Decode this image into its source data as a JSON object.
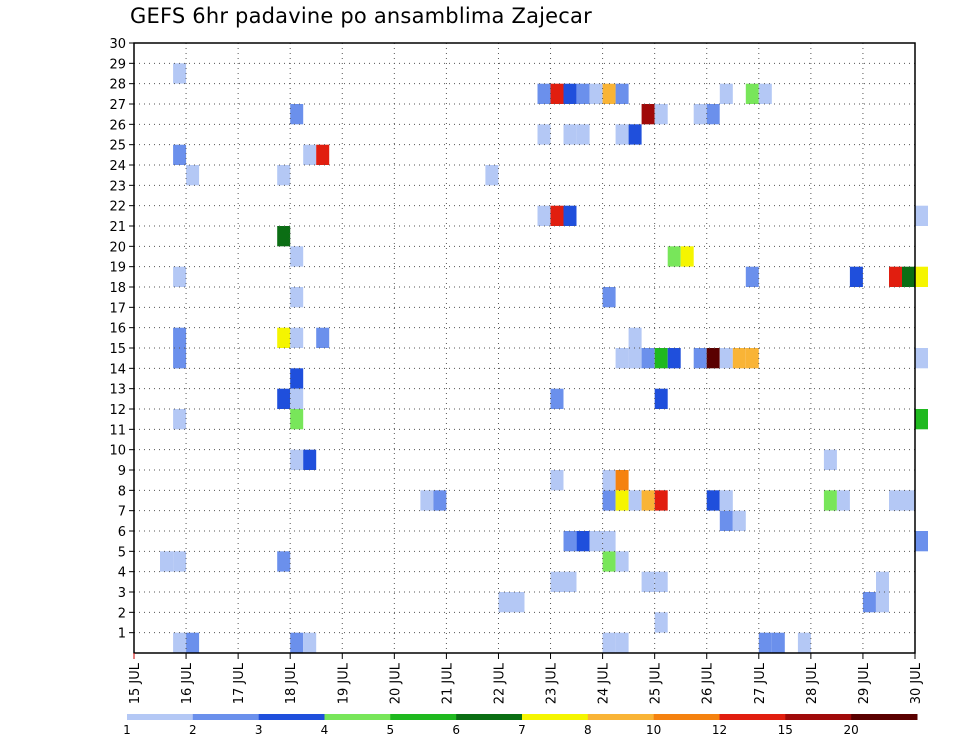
{
  "chart_data": {
    "type": "heatmap",
    "title": "GEFS 6hr padavine po ansamblima Zajecar",
    "x_ticks": [
      "15 JUL",
      "16 JUL",
      "17 JUL",
      "18 JUL",
      "19 JUL",
      "20 JUL",
      "21 JUL",
      "22 JUL",
      "23 JUL",
      "24 JUL",
      "25 JUL",
      "26 JUL",
      "27 JUL",
      "28 JUL",
      "29 JUL",
      "30 JUL"
    ],
    "y_ticks": [
      "1",
      "2",
      "3",
      "4",
      "5",
      "6",
      "7",
      "8",
      "9",
      "10",
      "11",
      "12",
      "13",
      "14",
      "15",
      "16",
      "17",
      "18",
      "19",
      "20",
      "21",
      "22",
      "23",
      "24",
      "25",
      "26",
      "27",
      "28",
      "29",
      "30"
    ],
    "x_range": [
      "15 JUL 00Z",
      "30 JUL 00Z"
    ],
    "time_step_hours": 6,
    "y_range": [
      0,
      30
    ],
    "grid": "dotted",
    "legend": {
      "position": "bottom",
      "labels": [
        "1",
        "2",
        "3",
        "4",
        "5",
        "6",
        "7",
        "8",
        "10",
        "12",
        "15",
        "20"
      ],
      "colors": [
        "#b4c8f5",
        "#6b90ec",
        "#1f4fdc",
        "#78e65a",
        "#1fb91f",
        "#0b6e14",
        "#f5f500",
        "#f9b436",
        "#f5820f",
        "#e11e0f",
        "#a00a0a",
        "#5a0000"
      ]
    },
    "cells": [
      {
        "x": "15 JUL 18Z",
        "y": [
          0,
          1
        ],
        "level": 1
      },
      {
        "x": "16 JUL 00Z",
        "y": [
          0,
          1
        ],
        "level": 2
      },
      {
        "x": "18 JUL 00Z",
        "y": [
          0,
          1
        ],
        "level": 2
      },
      {
        "x": "18 JUL 06Z",
        "y": [
          0,
          1
        ],
        "level": 1
      },
      {
        "x": "24 JUL 00Z",
        "y": [
          0,
          1
        ],
        "level": 1
      },
      {
        "x": "24 JUL 06Z",
        "y": [
          0,
          1
        ],
        "level": 1
      },
      {
        "x": "27 JUL 00Z",
        "y": [
          0,
          1
        ],
        "level": 2
      },
      {
        "x": "27 JUL 06Z",
        "y": [
          0,
          1
        ],
        "level": 2
      },
      {
        "x": "27 JUL 18Z",
        "y": [
          0,
          1
        ],
        "level": 1
      },
      {
        "x": "25 JUL 00Z",
        "y": [
          1,
          2
        ],
        "level": 1
      },
      {
        "x": "22 JUL 00Z",
        "y": [
          2,
          3
        ],
        "level": 1
      },
      {
        "x": "22 JUL 06Z",
        "y": [
          2,
          3
        ],
        "level": 1
      },
      {
        "x": "29 JUL 00Z",
        "y": [
          2,
          3
        ],
        "level": 2
      },
      {
        "x": "29 JUL 06Z",
        "y": [
          2,
          3
        ],
        "level": 1
      },
      {
        "x": "23 JUL 00Z",
        "y": [
          3,
          4
        ],
        "level": 1
      },
      {
        "x": "23 JUL 06Z",
        "y": [
          3,
          4
        ],
        "level": 1
      },
      {
        "x": "24 JUL 18Z",
        "y": [
          3,
          4
        ],
        "level": 1
      },
      {
        "x": "25 JUL 00Z",
        "y": [
          3,
          4
        ],
        "level": 1
      },
      {
        "x": "29 JUL 06Z",
        "y": [
          3,
          4
        ],
        "level": 1
      },
      {
        "x": "15 JUL 12Z",
        "y": [
          4,
          5
        ],
        "level": 1
      },
      {
        "x": "15 JUL 18Z",
        "y": [
          4,
          5
        ],
        "level": 1
      },
      {
        "x": "17 JUL 18Z",
        "y": [
          4,
          5
        ],
        "level": 2
      },
      {
        "x": "24 JUL 00Z",
        "y": [
          4,
          5
        ],
        "level": 4
      },
      {
        "x": "24 JUL 06Z",
        "y": [
          4,
          5
        ],
        "level": 1
      },
      {
        "x": "23 JUL 06Z",
        "y": [
          5,
          6
        ],
        "level": 2
      },
      {
        "x": "23 JUL 12Z",
        "y": [
          5,
          6
        ],
        "level": 3
      },
      {
        "x": "23 JUL 18Z",
        "y": [
          5,
          6
        ],
        "level": 1
      },
      {
        "x": "24 JUL 00Z",
        "y": [
          5,
          6
        ],
        "level": 1
      },
      {
        "x": "30 JUL 00Z",
        "y": [
          5,
          6
        ],
        "level": 2
      },
      {
        "x": "26 JUL 06Z",
        "y": [
          6,
          7
        ],
        "level": 2
      },
      {
        "x": "26 JUL 12Z",
        "y": [
          6,
          7
        ],
        "level": 1
      },
      {
        "x": "20 JUL 12Z",
        "y": [
          7,
          8
        ],
        "level": 1
      },
      {
        "x": "20 JUL 18Z",
        "y": [
          7,
          8
        ],
        "level": 2
      },
      {
        "x": "24 JUL 00Z",
        "y": [
          7,
          8
        ],
        "level": 2
      },
      {
        "x": "24 JUL 06Z",
        "y": [
          7,
          8
        ],
        "level": 7
      },
      {
        "x": "24 JUL 12Z",
        "y": [
          7,
          8
        ],
        "level": 1
      },
      {
        "x": "24 JUL 18Z",
        "y": [
          7,
          8
        ],
        "level": 8
      },
      {
        "x": "25 JUL 00Z",
        "y": [
          7,
          8
        ],
        "level": 12
      },
      {
        "x": "26 JUL 00Z",
        "y": [
          7,
          8
        ],
        "level": 3
      },
      {
        "x": "26 JUL 06Z",
        "y": [
          7,
          8
        ],
        "level": 1
      },
      {
        "x": "28 JUL 06Z",
        "y": [
          7,
          8
        ],
        "level": 4
      },
      {
        "x": "28 JUL 12Z",
        "y": [
          7,
          8
        ],
        "level": 1
      },
      {
        "x": "29 JUL 12Z",
        "y": [
          7,
          8
        ],
        "level": 1
      },
      {
        "x": "29 JUL 18Z",
        "y": [
          7,
          8
        ],
        "level": 1
      },
      {
        "x": "23 JUL 00Z",
        "y": [
          8,
          9
        ],
        "level": 1
      },
      {
        "x": "24 JUL 00Z",
        "y": [
          8,
          9
        ],
        "level": 1
      },
      {
        "x": "24 JUL 06Z",
        "y": [
          8,
          9
        ],
        "level": 10
      },
      {
        "x": "18 JUL 00Z",
        "y": [
          9,
          10
        ],
        "level": 1
      },
      {
        "x": "18 JUL 06Z",
        "y": [
          9,
          10
        ],
        "level": 3
      },
      {
        "x": "28 JUL 06Z",
        "y": [
          9,
          10
        ],
        "level": 1
      },
      {
        "x": "15 JUL 18Z",
        "y": [
          11,
          12
        ],
        "level": 1
      },
      {
        "x": "18 JUL 00Z",
        "y": [
          11,
          12
        ],
        "level": 4
      },
      {
        "x": "30 JUL 00Z",
        "y": [
          11,
          12
        ],
        "level": 5
      },
      {
        "x": "17 JUL 18Z",
        "y": [
          12,
          13
        ],
        "level": 3
      },
      {
        "x": "18 JUL 00Z",
        "y": [
          12,
          13
        ],
        "level": 1
      },
      {
        "x": "23 JUL 00Z",
        "y": [
          12,
          13
        ],
        "level": 2
      },
      {
        "x": "25 JUL 00Z",
        "y": [
          12,
          13
        ],
        "level": 3
      },
      {
        "x": "18 JUL 00Z",
        "y": [
          13,
          14
        ],
        "level": 3
      },
      {
        "x": "15 JUL 18Z",
        "y": [
          14,
          16
        ],
        "level": 2
      },
      {
        "x": "24 JUL 06Z",
        "y": [
          14,
          15
        ],
        "level": 1
      },
      {
        "x": "24 JUL 12Z",
        "y": [
          14,
          16
        ],
        "level": 1
      },
      {
        "x": "24 JUL 18Z",
        "y": [
          14,
          15
        ],
        "level": 2
      },
      {
        "x": "25 JUL 00Z",
        "y": [
          14,
          15
        ],
        "level": 5
      },
      {
        "x": "25 JUL 06Z",
        "y": [
          14,
          15
        ],
        "level": 3
      },
      {
        "x": "25 JUL 18Z",
        "y": [
          14,
          15
        ],
        "level": 2
      },
      {
        "x": "26 JUL 00Z",
        "y": [
          14,
          15
        ],
        "level": 20
      },
      {
        "x": "26 JUL 06Z",
        "y": [
          14,
          15
        ],
        "level": 1
      },
      {
        "x": "26 JUL 12Z",
        "y": [
          14,
          15
        ],
        "level": 8
      },
      {
        "x": "26 JUL 18Z",
        "y": [
          14,
          15
        ],
        "level": 8
      },
      {
        "x": "30 JUL 00Z",
        "y": [
          14,
          15
        ],
        "level": 1
      },
      {
        "x": "17 JUL 18Z",
        "y": [
          15,
          16
        ],
        "level": 7
      },
      {
        "x": "18 JUL 00Z",
        "y": [
          15,
          16
        ],
        "level": 1
      },
      {
        "x": "18 JUL 12Z",
        "y": [
          15,
          16
        ],
        "level": 2
      },
      {
        "x": "18 JUL 00Z",
        "y": [
          17,
          18
        ],
        "level": 1
      },
      {
        "x": "24 JUL 00Z",
        "y": [
          17,
          18
        ],
        "level": 2
      },
      {
        "x": "15 JUL 18Z",
        "y": [
          18,
          19
        ],
        "level": 1
      },
      {
        "x": "26 JUL 18Z",
        "y": [
          18,
          19
        ],
        "level": 2
      },
      {
        "x": "28 JUL 18Z",
        "y": [
          18,
          19
        ],
        "level": 3
      },
      {
        "x": "29 JUL 12Z",
        "y": [
          18,
          19
        ],
        "level": 12
      },
      {
        "x": "29 JUL 18Z",
        "y": [
          18,
          19
        ],
        "level": 6
      },
      {
        "x": "30 JUL 00Z",
        "y": [
          18,
          19
        ],
        "level": 7
      },
      {
        "x": "18 JUL 00Z",
        "y": [
          19,
          20
        ],
        "level": 1
      },
      {
        "x": "25 JUL 06Z",
        "y": [
          19,
          20
        ],
        "level": 4
      },
      {
        "x": "25 JUL 12Z",
        "y": [
          19,
          20
        ],
        "level": 7
      },
      {
        "x": "17 JUL 18Z",
        "y": [
          20,
          21
        ],
        "level": 6
      },
      {
        "x": "22 JUL 18Z",
        "y": [
          21,
          22
        ],
        "level": 1
      },
      {
        "x": "23 JUL 00Z",
        "y": [
          21,
          22
        ],
        "level": 12
      },
      {
        "x": "23 JUL 06Z",
        "y": [
          21,
          22
        ],
        "level": 3
      },
      {
        "x": "30 JUL 00Z",
        "y": [
          21,
          22
        ],
        "level": 1
      },
      {
        "x": "21 JUL 18Z",
        "y": [
          23,
          24
        ],
        "level": 1
      },
      {
        "x": "16 JUL 00Z",
        "y": [
          23,
          24
        ],
        "level": 1
      },
      {
        "x": "17 JUL 18Z",
        "y": [
          23,
          24
        ],
        "level": 1
      },
      {
        "x": "15 JUL 18Z",
        "y": [
          24,
          25
        ],
        "level": 2
      },
      {
        "x": "18 JUL 06Z",
        "y": [
          24,
          25
        ],
        "level": 1
      },
      {
        "x": "18 JUL 12Z",
        "y": [
          24,
          25
        ],
        "level": 12
      },
      {
        "x": "22 JUL 18Z",
        "y": [
          25,
          26
        ],
        "level": 1
      },
      {
        "x": "23 JUL 06Z",
        "y": [
          25,
          26
        ],
        "level": 1
      },
      {
        "x": "23 JUL 12Z",
        "y": [
          25,
          26
        ],
        "level": 1
      },
      {
        "x": "24 JUL 06Z",
        "y": [
          25,
          26
        ],
        "level": 1
      },
      {
        "x": "24 JUL 12Z",
        "y": [
          25,
          26
        ],
        "level": 3
      },
      {
        "x": "18 JUL 00Z",
        "y": [
          26,
          27
        ],
        "level": 2
      },
      {
        "x": "24 JUL 18Z",
        "y": [
          26,
          27
        ],
        "level": 15
      },
      {
        "x": "25 JUL 00Z",
        "y": [
          26,
          27
        ],
        "level": 1
      },
      {
        "x": "25 JUL 18Z",
        "y": [
          26,
          27
        ],
        "level": 1
      },
      {
        "x": "26 JUL 00Z",
        "y": [
          26,
          27
        ],
        "level": 2
      },
      {
        "x": "22 JUL 18Z",
        "y": [
          27,
          28
        ],
        "level": 2
      },
      {
        "x": "23 JUL 00Z",
        "y": [
          27,
          28
        ],
        "level": 12
      },
      {
        "x": "23 JUL 06Z",
        "y": [
          27,
          28
        ],
        "level": 3
      },
      {
        "x": "23 JUL 12Z",
        "y": [
          27,
          28
        ],
        "level": 2
      },
      {
        "x": "23 JUL 18Z",
        "y": [
          27,
          28
        ],
        "level": 1
      },
      {
        "x": "24 JUL 00Z",
        "y": [
          27,
          28
        ],
        "level": 8
      },
      {
        "x": "24 JUL 06Z",
        "y": [
          27,
          28
        ],
        "level": 2
      },
      {
        "x": "26 JUL 06Z",
        "y": [
          27,
          28
        ],
        "level": 1
      },
      {
        "x": "26 JUL 18Z",
        "y": [
          27,
          28
        ],
        "level": 4
      },
      {
        "x": "27 JUL 00Z",
        "y": [
          27,
          28
        ],
        "level": 1
      },
      {
        "x": "15 JUL 18Z",
        "y": [
          28,
          29
        ],
        "level": 1
      }
    ]
  }
}
